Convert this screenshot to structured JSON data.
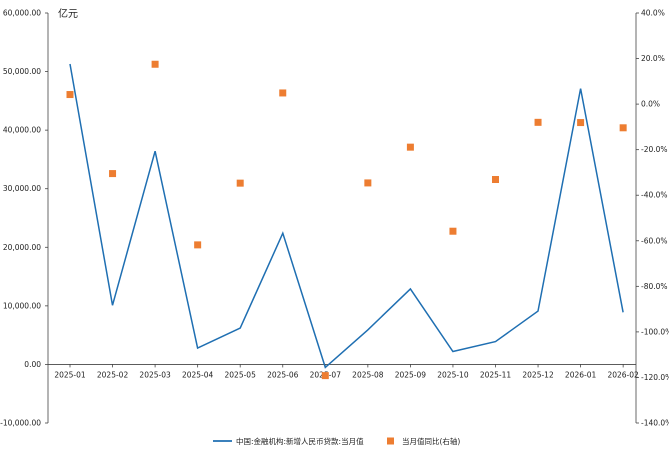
{
  "chart_data": {
    "type": "line",
    "title": "",
    "unit_left": "亿元",
    "categories": [
      "2025-01",
      "2025-02",
      "2025-03",
      "2025-04",
      "2025-05",
      "2025-06",
      "2025-07",
      "2025-08",
      "2025-09",
      "2025-10",
      "2025-11",
      "2025-12",
      "2026-01",
      "2026-02"
    ],
    "y_left": {
      "ylim": [
        -10000,
        60000
      ],
      "ticks": [
        -10000,
        0,
        10000,
        20000,
        30000,
        40000,
        50000,
        60000
      ],
      "tick_labels": [
        "-10,000.00",
        "0.00",
        "10,000.00",
        "20,000.00",
        "30,000.00",
        "40,000.00",
        "50,000.00",
        "60,000.00"
      ]
    },
    "y_right": {
      "ylim": [
        -140,
        40
      ],
      "ticks": [
        -140,
        -120,
        -100,
        -80,
        -60,
        -40,
        -20,
        0,
        20,
        40
      ],
      "tick_labels": [
        "-140.0%",
        "-120.0%",
        "-100.0%",
        "-80.0%",
        "-60.0%",
        "-40.0%",
        "-20.0%",
        "0.0%",
        "20.0%",
        "40.0%"
      ]
    },
    "series": [
      {
        "name": "中国:金融机构:新增人民币贷款:当月值",
        "kind": "line",
        "axis": "left",
        "color": "#1f6fb2",
        "values": [
          51300,
          10100,
          36400,
          2800,
          6200,
          22400,
          -500,
          5900,
          12900,
          2200,
          3900,
          9100,
          47100,
          8900
        ]
      },
      {
        "name": "当月值同比(右轴)",
        "kind": "scatter",
        "axis": "right",
        "color": "#ed7d31",
        "values": [
          4.2,
          -30.5,
          17.5,
          -61.8,
          -34.7,
          4.9,
          -119.2,
          -34.6,
          -18.9,
          -55.8,
          -33.1,
          -8.0,
          -8.1,
          -10.4
        ]
      }
    ],
    "grid": false,
    "legend_position": "bottom"
  }
}
